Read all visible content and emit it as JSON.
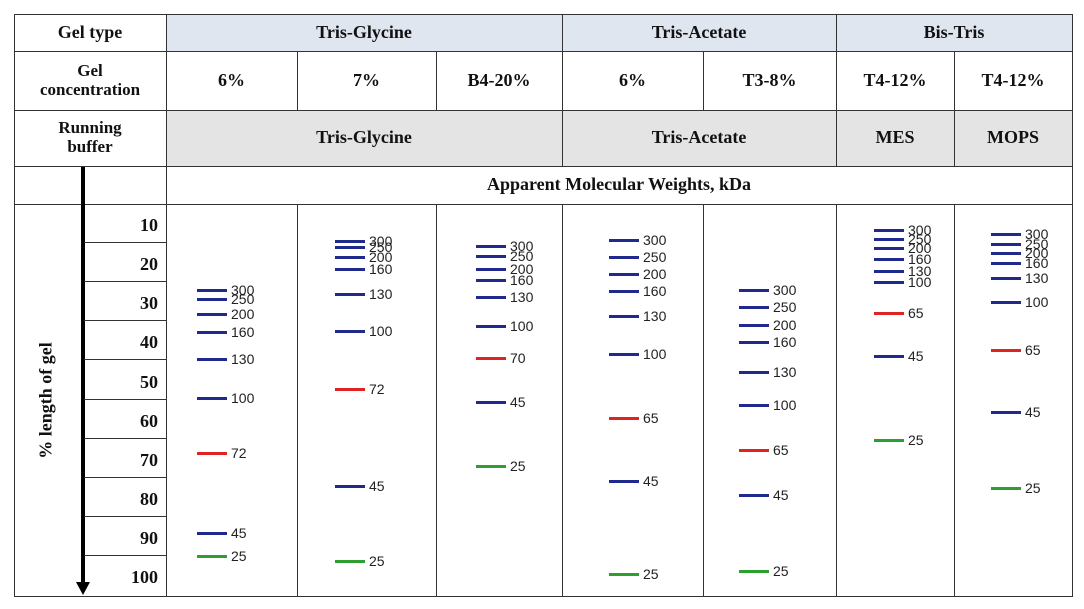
{
  "header": {
    "gel_type_label": "Gel type",
    "gel_types": [
      "Tris-Glycine",
      "Tris-Acetate",
      "Bis-Tris"
    ],
    "gel_concentration_label": "Gel\nconcentration",
    "concentrations": [
      "6%",
      "7%",
      "B4-20%",
      "6%",
      "T3-8%",
      "T4-12%",
      "T4-12%"
    ],
    "running_buffer_label": "Running\nbuffer",
    "running_buffers": [
      "Tris-Glycine",
      "Tris-Acetate",
      "MES",
      "MOPS"
    ],
    "mw_header": "Apparent Molecular Weights, kDa"
  },
  "axis": {
    "label": "% length of gel",
    "ticks": [
      "10",
      "20",
      "30",
      "40",
      "50",
      "60",
      "70",
      "80",
      "90",
      "100"
    ]
  },
  "colors": {
    "header_shade": "#dfe6f0",
    "buffer_shade": "#e4e4e4",
    "blue": "#1f2a8c",
    "red": "#e02424",
    "green": "#2e9e2e"
  },
  "lanes": [
    {
      "bands": [
        {
          "mw": "300",
          "pct": 26.0,
          "color": "blue"
        },
        {
          "mw": "250",
          "pct": 28.5,
          "color": "blue"
        },
        {
          "mw": "200",
          "pct": 32.3,
          "color": "blue"
        },
        {
          "mw": "160",
          "pct": 36.9,
          "color": "blue"
        },
        {
          "mw": "130",
          "pct": 43.8,
          "color": "blue"
        },
        {
          "mw": "100",
          "pct": 53.8,
          "color": "blue"
        },
        {
          "mw": "72",
          "pct": 67.9,
          "color": "red"
        },
        {
          "mw": "45",
          "pct": 88.2,
          "color": "blue"
        },
        {
          "mw": "25",
          "pct": 94.1,
          "color": "green"
        }
      ]
    },
    {
      "bands": [
        {
          "mw": "300",
          "pct": 13.6,
          "color": "blue"
        },
        {
          "mw": "250",
          "pct": 15.1,
          "color": "blue"
        },
        {
          "mw": "200",
          "pct": 17.7,
          "color": "blue"
        },
        {
          "mw": "160",
          "pct": 20.8,
          "color": "blue"
        },
        {
          "mw": "130",
          "pct": 27.2,
          "color": "blue"
        },
        {
          "mw": "100",
          "pct": 36.6,
          "color": "blue"
        },
        {
          "mw": "72",
          "pct": 51.4,
          "color": "red"
        },
        {
          "mw": "45",
          "pct": 76.1,
          "color": "blue"
        },
        {
          "mw": "25",
          "pct": 95.3,
          "color": "green"
        }
      ]
    },
    {
      "bands": [
        {
          "mw": "300",
          "pct": 14.8,
          "color": "blue"
        },
        {
          "mw": "250",
          "pct": 17.4,
          "color": "blue"
        },
        {
          "mw": "200",
          "pct": 20.8,
          "color": "blue"
        },
        {
          "mw": "160",
          "pct": 23.6,
          "color": "blue"
        },
        {
          "mw": "130",
          "pct": 28.0,
          "color": "blue"
        },
        {
          "mw": "100",
          "pct": 35.4,
          "color": "blue"
        },
        {
          "mw": "70",
          "pct": 43.5,
          "color": "red"
        },
        {
          "mw": "45",
          "pct": 54.8,
          "color": "blue"
        },
        {
          "mw": "25",
          "pct": 71.0,
          "color": "green"
        }
      ]
    },
    {
      "bands": [
        {
          "mw": "300",
          "pct": 13.3,
          "color": "blue"
        },
        {
          "mw": "250",
          "pct": 17.7,
          "color": "blue"
        },
        {
          "mw": "200",
          "pct": 22.1,
          "color": "blue"
        },
        {
          "mw": "160",
          "pct": 26.3,
          "color": "blue"
        },
        {
          "mw": "130",
          "pct": 32.7,
          "color": "blue"
        },
        {
          "mw": "100",
          "pct": 42.5,
          "color": "blue"
        },
        {
          "mw": "65",
          "pct": 58.8,
          "color": "red"
        },
        {
          "mw": "45",
          "pct": 74.9,
          "color": "blue"
        },
        {
          "mw": "25",
          "pct": 98.6,
          "color": "green"
        }
      ]
    },
    {
      "bands": [
        {
          "mw": "300",
          "pct": 26.0,
          "color": "blue"
        },
        {
          "mw": "250",
          "pct": 30.4,
          "color": "blue"
        },
        {
          "mw": "200",
          "pct": 35.0,
          "color": "blue"
        },
        {
          "mw": "160",
          "pct": 39.3,
          "color": "blue"
        },
        {
          "mw": "130",
          "pct": 47.1,
          "color": "blue"
        },
        {
          "mw": "100",
          "pct": 55.5,
          "color": "blue"
        },
        {
          "mw": "65",
          "pct": 66.9,
          "color": "red"
        },
        {
          "mw": "45",
          "pct": 78.5,
          "color": "blue"
        },
        {
          "mw": "25",
          "pct": 98.0,
          "color": "green"
        }
      ]
    },
    {
      "bands": [
        {
          "mw": "300",
          "pct": 10.7,
          "color": "blue"
        },
        {
          "mw": "250",
          "pct": 13.1,
          "color": "blue"
        },
        {
          "mw": "200",
          "pct": 15.4,
          "color": "blue"
        },
        {
          "mw": "160",
          "pct": 18.2,
          "color": "blue"
        },
        {
          "mw": "130",
          "pct": 21.2,
          "color": "blue"
        },
        {
          "mw": "100",
          "pct": 24.0,
          "color": "blue"
        },
        {
          "mw": "65",
          "pct": 31.9,
          "color": "red"
        },
        {
          "mw": "45",
          "pct": 43.0,
          "color": "blue"
        },
        {
          "mw": "25",
          "pct": 64.5,
          "color": "green"
        }
      ]
    },
    {
      "bands": [
        {
          "mw": "300",
          "pct": 11.8,
          "color": "blue"
        },
        {
          "mw": "250",
          "pct": 14.3,
          "color": "blue"
        },
        {
          "mw": "200",
          "pct": 16.6,
          "color": "blue"
        },
        {
          "mw": "160",
          "pct": 19.2,
          "color": "blue"
        },
        {
          "mw": "130",
          "pct": 22.9,
          "color": "blue"
        },
        {
          "mw": "100",
          "pct": 29.1,
          "color": "blue"
        },
        {
          "mw": "65",
          "pct": 41.5,
          "color": "red"
        },
        {
          "mw": "45",
          "pct": 57.3,
          "color": "blue"
        },
        {
          "mw": "25",
          "pct": 76.8,
          "color": "green"
        }
      ]
    }
  ]
}
